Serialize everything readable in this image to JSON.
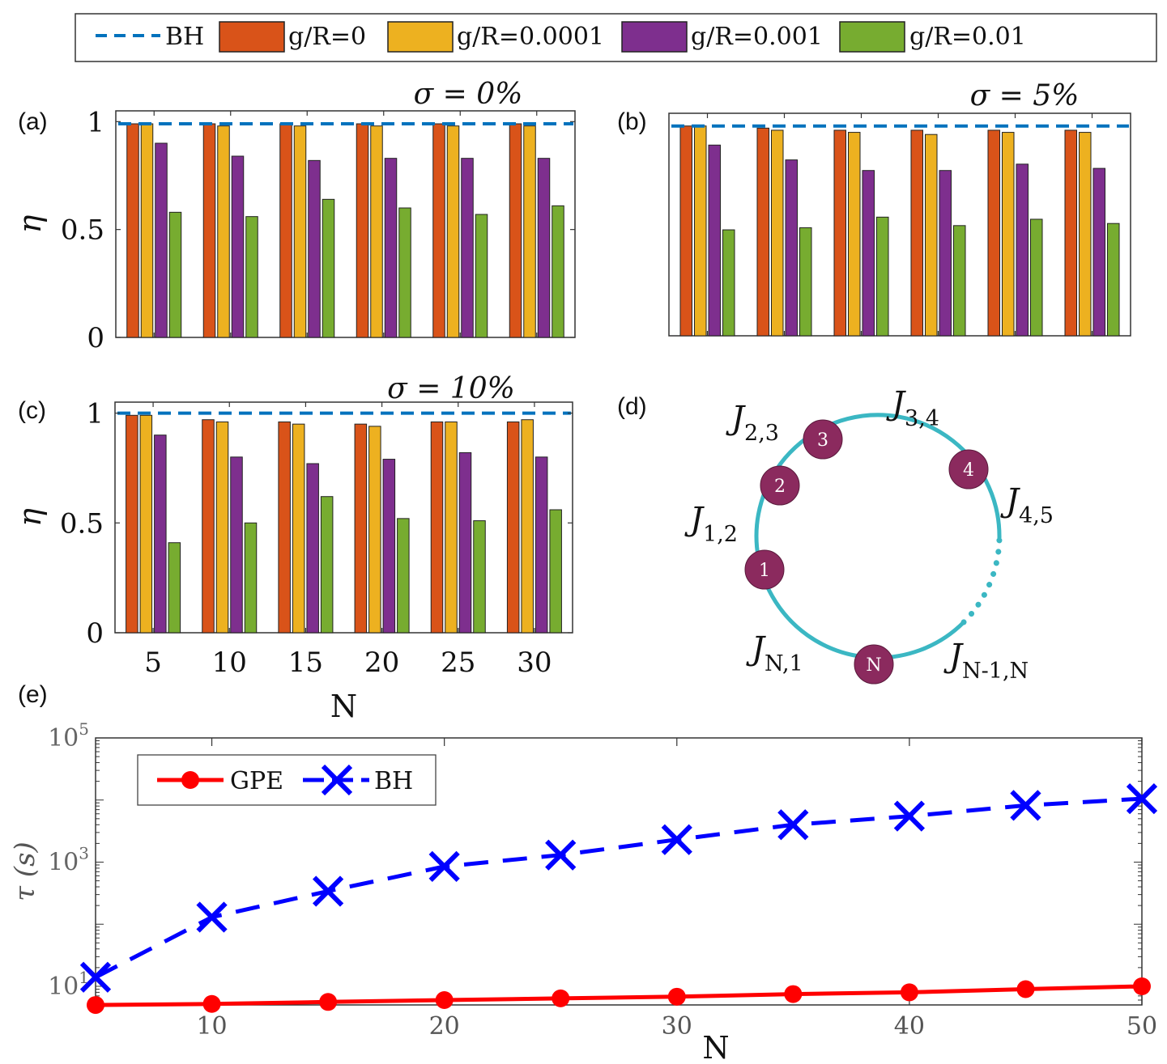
{
  "legend": {
    "items": [
      {
        "label": "BH",
        "kind": "dashed-line",
        "color": "#0072BD"
      },
      {
        "label": "g/R=0",
        "kind": "box",
        "color": "#D95319"
      },
      {
        "label": "g/R=0.0001",
        "kind": "box",
        "color": "#EDB120"
      },
      {
        "label": "g/R=0.001",
        "kind": "box",
        "color": "#7E2F8E"
      },
      {
        "label": "g/R=0.01",
        "kind": "box",
        "color": "#77AC30"
      }
    ]
  },
  "panel_labels": {
    "a": "(a)",
    "b": "(b)",
    "c": "(c)",
    "d": "(d)",
    "e": "(e)"
  },
  "chart_data": [
    {
      "id": "a",
      "type": "bar",
      "title": "σ = 0%",
      "xlabel": "",
      "ylabel": "η",
      "categories": [
        "5",
        "10",
        "15",
        "20",
        "25",
        "30"
      ],
      "show_x_ticks": false,
      "ylim": [
        0,
        1.05
      ],
      "yticks": [
        "0",
        "0.5",
        "1"
      ],
      "reference_line": {
        "name": "BH",
        "value": 0.99
      },
      "series": [
        {
          "name": "g/R=0",
          "values": [
            0.99,
            0.99,
            0.99,
            0.99,
            0.99,
            0.99
          ]
        },
        {
          "name": "g/R=0.0001",
          "values": [
            0.99,
            0.98,
            0.98,
            0.98,
            0.98,
            0.98
          ]
        },
        {
          "name": "g/R=0.001",
          "values": [
            0.9,
            0.84,
            0.82,
            0.83,
            0.83,
            0.83
          ]
        },
        {
          "name": "g/R=0.01",
          "values": [
            0.58,
            0.56,
            0.64,
            0.6,
            0.57,
            0.61
          ]
        }
      ]
    },
    {
      "id": "b",
      "type": "bar",
      "title": "σ = 5%",
      "xlabel": "",
      "ylabel": "",
      "categories": [
        "5",
        "10",
        "15",
        "20",
        "25",
        "30"
      ],
      "show_x_ticks": false,
      "ylim": [
        0,
        1.05
      ],
      "yticks": [],
      "reference_line": {
        "name": "BH",
        "value": 0.99
      },
      "series": [
        {
          "name": "g/R=0",
          "values": [
            0.99,
            0.98,
            0.97,
            0.97,
            0.97,
            0.97
          ]
        },
        {
          "name": "g/R=0.0001",
          "values": [
            0.99,
            0.97,
            0.96,
            0.95,
            0.96,
            0.96
          ]
        },
        {
          "name": "g/R=0.001",
          "values": [
            0.9,
            0.83,
            0.78,
            0.78,
            0.81,
            0.79
          ]
        },
        {
          "name": "g/R=0.01",
          "values": [
            0.5,
            0.51,
            0.56,
            0.52,
            0.55,
            0.53
          ]
        }
      ]
    },
    {
      "id": "c",
      "type": "bar",
      "title": "σ = 10%",
      "xlabel": "N",
      "ylabel": "η",
      "categories": [
        "5",
        "10",
        "15",
        "20",
        "25",
        "30"
      ],
      "show_x_ticks": true,
      "ylim": [
        0,
        1.05
      ],
      "yticks": [
        "0",
        "0.5",
        "1"
      ],
      "reference_line": {
        "name": "BH",
        "value": 1.0
      },
      "series": [
        {
          "name": "g/R=0",
          "values": [
            0.99,
            0.97,
            0.96,
            0.95,
            0.96,
            0.96
          ]
        },
        {
          "name": "g/R=0.0001",
          "values": [
            0.99,
            0.96,
            0.95,
            0.94,
            0.96,
            0.97
          ]
        },
        {
          "name": "g/R=0.001",
          "values": [
            0.9,
            0.8,
            0.77,
            0.79,
            0.82,
            0.8
          ]
        },
        {
          "name": "g/R=0.01",
          "values": [
            0.41,
            0.5,
            0.62,
            0.52,
            0.51,
            0.56
          ]
        }
      ]
    },
    {
      "id": "e",
      "type": "line",
      "title": "",
      "xlabel": "N",
      "ylabel": "τ (s)",
      "yscale": "log",
      "xlim": [
        5,
        50
      ],
      "ylim_exp": [
        0.7,
        5.0
      ],
      "xticks": [
        10,
        20,
        30,
        40,
        50
      ],
      "yticks": [
        {
          "base": "10",
          "exp": "1",
          "value": 10
        },
        {
          "base": "10",
          "exp": "3",
          "value": 1000
        },
        {
          "base": "10",
          "exp": "5",
          "value": 100000
        }
      ],
      "legend_position": "top-left",
      "x": [
        5,
        10,
        15,
        20,
        25,
        30,
        35,
        40,
        45,
        50
      ],
      "series": [
        {
          "name": "GPE",
          "style": "solid-circle",
          "color": "#FF0000",
          "values": [
            5.0,
            5.2,
            5.6,
            6.0,
            6.4,
            6.8,
            7.5,
            8.0,
            9.0,
            10.0
          ]
        },
        {
          "name": "BH",
          "style": "dashed-cross",
          "color": "#0000FF",
          "values": [
            14,
            130,
            340,
            850,
            1300,
            2300,
            4000,
            5500,
            8200,
            10500
          ]
        }
      ]
    }
  ],
  "diagram": {
    "id": "d",
    "nodes": [
      {
        "label": "1"
      },
      {
        "label": "2"
      },
      {
        "label": "3"
      },
      {
        "label": "4"
      },
      {
        "label": "N"
      }
    ],
    "couplings": [
      {
        "base": "J",
        "sub": "1,2"
      },
      {
        "base": "J",
        "sub": "2,3"
      },
      {
        "base": "J",
        "sub": "3,4"
      },
      {
        "base": "J",
        "sub": "4,5"
      },
      {
        "base": "J",
        "sub": "N-1,N"
      },
      {
        "base": "J",
        "sub": "N,1"
      }
    ],
    "ring_color": "#3BB7C3",
    "node_color": "#8B2A5E"
  }
}
